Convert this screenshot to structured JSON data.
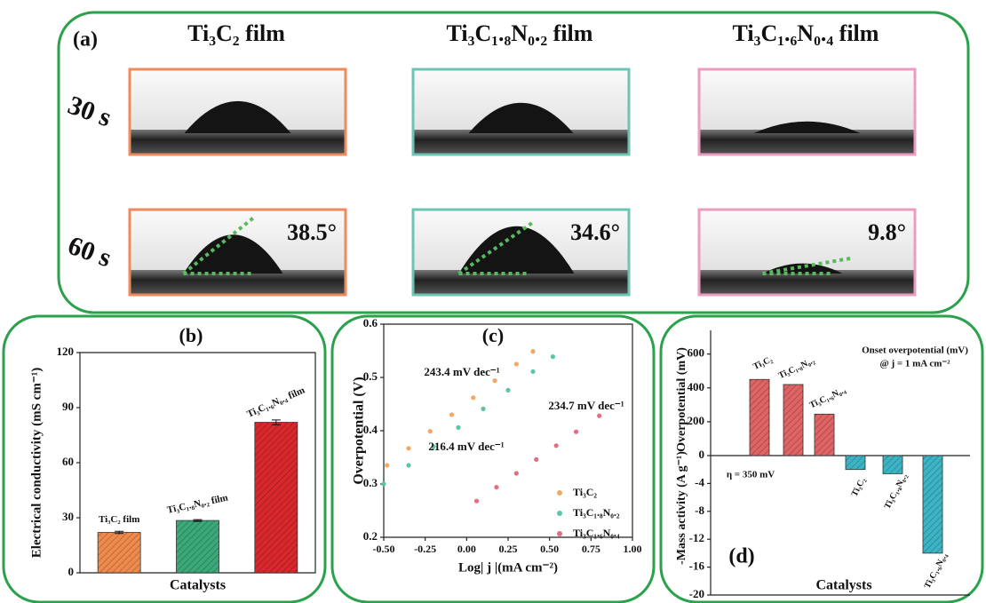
{
  "panel_a": {
    "label": "(a)",
    "columns": [
      {
        "title": "Ti₃C₂ film",
        "angle": "38.5°"
      },
      {
        "title": "Ti₃C₁.₈N₀.₂ film",
        "angle": "34.6°"
      },
      {
        "title": "Ti₃C₁.₆N₀.₄ film",
        "angle": "9.8°"
      }
    ],
    "rows": [
      "30 s",
      "60 s"
    ]
  },
  "chart_data": [
    {
      "type": "bar",
      "title": "(b)",
      "xlabel": "Catalysts",
      "ylabel": "Electrical conductivity (mS cm⁻¹)",
      "categories": [
        "Ti₃C₂ film",
        "Ti₃C₁.₈N₀.₂ film",
        "Ti₃C₁.₆N₀.₄ film"
      ],
      "values": [
        22,
        28.5,
        82
      ],
      "errors": [
        0.6,
        0.5,
        1.3
      ],
      "colors": [
        "#ee8a4c",
        "#3aa878",
        "#d8282c"
      ],
      "ylim": [
        0,
        120
      ],
      "yticks": [
        0,
        30,
        60,
        90,
        120
      ]
    },
    {
      "type": "scatter",
      "title": "(c)",
      "xlabel": "Log| j |(mA cm⁻²)",
      "ylabel": "Overpotential (V)",
      "xlim": [
        -0.5,
        1.0
      ],
      "xticks": [
        {
          "value": -0.5,
          "label": "-0.50"
        },
        {
          "value": -0.25,
          "label": "-0.25"
        },
        {
          "value": 0,
          "label": "0.00"
        },
        {
          "value": 0.25,
          "label": "0.25"
        },
        {
          "value": 0.5,
          "label": "0.50"
        },
        {
          "value": 0.75,
          "label": "0.75"
        },
        {
          "value": 1,
          "label": "1.00"
        }
      ],
      "ylim": [
        0.2,
        0.6
      ],
      "yticks": [
        0.2,
        0.3,
        0.4,
        0.5,
        0.6
      ],
      "series": [
        {
          "name": "Ti₃C₂",
          "color": "#f0a868",
          "annotation": "243.4 mV dec⁻¹",
          "x": [
            -0.48,
            -0.35,
            -0.22,
            -0.09,
            0.04,
            0.17,
            0.3,
            0.4
          ],
          "values": [
            0.335,
            0.367,
            0.399,
            0.43,
            0.462,
            0.494,
            0.525,
            0.549
          ]
        },
        {
          "name": "Ti₃C₁.₈N₀.₂",
          "color": "#5cc4a8",
          "annotation": "234.7 mV dec⁻¹",
          "x": [
            -0.5,
            -0.35,
            -0.2,
            -0.05,
            0.1,
            0.25,
            0.4,
            0.52
          ],
          "values": [
            0.3,
            0.335,
            0.37,
            0.406,
            0.441,
            0.476,
            0.511,
            0.539
          ]
        },
        {
          "name": "Ti₃C₁.₆N₀.₄",
          "color": "#e07080",
          "annotation": "216.4 mV dec⁻¹",
          "x": [
            0.06,
            0.18,
            0.3,
            0.42,
            0.54,
            0.66,
            0.8
          ],
          "values": [
            0.268,
            0.294,
            0.32,
            0.346,
            0.372,
            0.398,
            0.428
          ]
        }
      ]
    },
    {
      "type": "bar",
      "title": "(d)",
      "xlabel": "Catalysts",
      "ylabel": "Overpotential (mV)",
      "y2label": "-Mass activity (A g⁻¹)",
      "categories": [
        "Ti₃C₂",
        "Ti₃C₁.₈N₀.₂",
        "Ti₃C₁.₆N₀.₄"
      ],
      "ylim": [
        0,
        740
      ],
      "yticks": [
        0,
        200,
        400,
        600
      ],
      "y2lim": [
        -20,
        0
      ],
      "y2ticks": [
        -20,
        -16,
        -12,
        -8,
        -4
      ],
      "annotation": "@ j = 1 mA cm⁻²",
      "series": [
        {
          "name": "Onset overpotential (mV)",
          "color": "#e06464",
          "values": [
            450,
            420,
            245
          ]
        },
        {
          "name": "η = 350 mV",
          "color": "#3cb4c4",
          "axis": "y2",
          "values": [
            -2,
            -2.6,
            -14
          ]
        }
      ]
    }
  ]
}
